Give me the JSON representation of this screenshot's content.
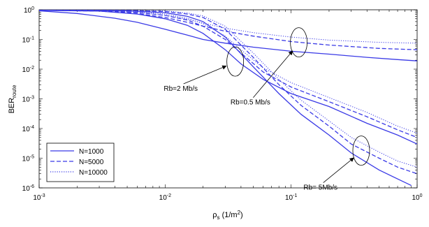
{
  "chart_data": {
    "type": "line",
    "title": "",
    "xlabel": {
      "base": "ρ",
      "sub": "s",
      "rest": " (1/m",
      "sup": "2",
      "close": ")"
    },
    "ylabel": {
      "base": "BER",
      "sub": "route"
    },
    "xscale": "log",
    "yscale": "log",
    "xlim": [
      0.001,
      1
    ],
    "ylim": [
      1e-06,
      1
    ],
    "grid": false,
    "legend_position": "bottom-left",
    "color": "#3a3ae6",
    "x_tick_labels": [
      {
        "value": 0.001,
        "base": "10",
        "exp": "-3"
      },
      {
        "value": 0.01,
        "base": "10",
        "exp": "-2"
      },
      {
        "value": 0.1,
        "base": "10",
        "exp": "-1"
      },
      {
        "value": 1,
        "base": "10",
        "exp": "0"
      }
    ],
    "y_tick_labels": [
      {
        "value": 1e-06,
        "base": "10",
        "exp": "-6"
      },
      {
        "value": 1e-05,
        "base": "10",
        "exp": "-5"
      },
      {
        "value": 0.0001,
        "base": "10",
        "exp": "-4"
      },
      {
        "value": 0.001,
        "base": "10",
        "exp": "-3"
      },
      {
        "value": 0.01,
        "base": "10",
        "exp": "-2"
      },
      {
        "value": 0.1,
        "base": "10",
        "exp": "-1"
      },
      {
        "value": 1,
        "base": "10",
        "exp": "0"
      }
    ],
    "legend": [
      {
        "label": "N=1000",
        "style": "solid"
      },
      {
        "label": "N=5000",
        "style": "dashed"
      },
      {
        "label": "N=10000",
        "style": "dotted"
      }
    ],
    "series": [
      {
        "name": "N=1000",
        "style": "solid",
        "group": "Rb=0.5 Mb/s",
        "points": [
          [
            0.001,
            0.92
          ],
          [
            0.002,
            0.75
          ],
          [
            0.004,
            0.52
          ],
          [
            0.006,
            0.38
          ],
          [
            0.01,
            0.22
          ],
          [
            0.015,
            0.14
          ],
          [
            0.02,
            0.1
          ],
          [
            0.03,
            0.075
          ],
          [
            0.05,
            0.055
          ],
          [
            0.1,
            0.04
          ],
          [
            0.2,
            0.032
          ],
          [
            0.4,
            0.025
          ],
          [
            0.7,
            0.021
          ],
          [
            1,
            0.019
          ]
        ]
      },
      {
        "name": "N=5000",
        "style": "dashed",
        "group": "Rb=0.5 Mb/s",
        "points": [
          [
            0.001,
            0.97
          ],
          [
            0.003,
            0.9
          ],
          [
            0.006,
            0.75
          ],
          [
            0.01,
            0.55
          ],
          [
            0.015,
            0.38
          ],
          [
            0.02,
            0.28
          ],
          [
            0.03,
            0.19
          ],
          [
            0.05,
            0.13
          ],
          [
            0.1,
            0.085
          ],
          [
            0.2,
            0.065
          ],
          [
            0.5,
            0.05
          ],
          [
            1,
            0.045
          ]
        ]
      },
      {
        "name": "N=10000",
        "style": "dotted",
        "group": "Rb=0.5 Mb/s",
        "points": [
          [
            0.001,
            0.98
          ],
          [
            0.003,
            0.93
          ],
          [
            0.006,
            0.82
          ],
          [
            0.01,
            0.65
          ],
          [
            0.015,
            0.48
          ],
          [
            0.02,
            0.36
          ],
          [
            0.03,
            0.24
          ],
          [
            0.05,
            0.17
          ],
          [
            0.1,
            0.12
          ],
          [
            0.2,
            0.095
          ],
          [
            0.5,
            0.08
          ],
          [
            1,
            0.075
          ]
        ]
      },
      {
        "name": "N=1000",
        "style": "solid",
        "group": "Rb=2 Mb/s",
        "points": [
          [
            0.001,
            0.95
          ],
          [
            0.003,
            0.9
          ],
          [
            0.006,
            0.72
          ],
          [
            0.01,
            0.5
          ],
          [
            0.015,
            0.3
          ],
          [
            0.02,
            0.16
          ],
          [
            0.03,
            0.045
          ],
          [
            0.04,
            0.015
          ],
          [
            0.06,
            0.0045
          ],
          [
            0.1,
            0.0015
          ],
          [
            0.2,
            0.00055
          ],
          [
            0.4,
            0.00015
          ],
          [
            0.7,
            6e-05
          ],
          [
            1,
            3e-05
          ]
        ]
      },
      {
        "name": "N=5000",
        "style": "dashed",
        "group": "Rb=2 Mb/s",
        "points": [
          [
            0.001,
            0.97
          ],
          [
            0.003,
            0.93
          ],
          [
            0.006,
            0.82
          ],
          [
            0.01,
            0.65
          ],
          [
            0.015,
            0.45
          ],
          [
            0.02,
            0.28
          ],
          [
            0.03,
            0.1
          ],
          [
            0.04,
            0.035
          ],
          [
            0.06,
            0.008
          ],
          [
            0.1,
            0.0025
          ],
          [
            0.2,
            0.0008
          ],
          [
            0.4,
            0.00025
          ],
          [
            0.7,
            9e-05
          ],
          [
            1,
            5e-05
          ]
        ]
      },
      {
        "name": "N=10000",
        "style": "dotted",
        "group": "Rb=2 Mb/s",
        "points": [
          [
            0.001,
            0.98
          ],
          [
            0.003,
            0.95
          ],
          [
            0.006,
            0.88
          ],
          [
            0.01,
            0.72
          ],
          [
            0.015,
            0.52
          ],
          [
            0.02,
            0.34
          ],
          [
            0.03,
            0.13
          ],
          [
            0.04,
            0.045
          ],
          [
            0.06,
            0.011
          ],
          [
            0.1,
            0.0035
          ],
          [
            0.2,
            0.0011
          ],
          [
            0.4,
            0.00035
          ],
          [
            0.7,
            0.00012
          ],
          [
            1,
            7e-05
          ]
        ]
      },
      {
        "name": "N=1000",
        "style": "solid",
        "group": "Rb= 5Mb/s",
        "points": [
          [
            0.001,
            0.96
          ],
          [
            0.005,
            0.92
          ],
          [
            0.01,
            0.8
          ],
          [
            0.015,
            0.6
          ],
          [
            0.02,
            0.4
          ],
          [
            0.03,
            0.12
          ],
          [
            0.05,
            0.012
          ],
          [
            0.08,
            0.0015
          ],
          [
            0.12,
            0.0003
          ],
          [
            0.2,
            6e-05
          ],
          [
            0.3,
            1.5e-05
          ],
          [
            0.5,
            4e-06
          ],
          [
            0.7,
            2e-06
          ],
          [
            0.9,
            1.2e-06
          ]
        ]
      },
      {
        "name": "N=5000",
        "style": "dashed",
        "group": "Rb= 5Mb/s",
        "points": [
          [
            0.001,
            0.98
          ],
          [
            0.005,
            0.95
          ],
          [
            0.01,
            0.88
          ],
          [
            0.015,
            0.72
          ],
          [
            0.02,
            0.55
          ],
          [
            0.03,
            0.22
          ],
          [
            0.05,
            0.025
          ],
          [
            0.08,
            0.003
          ],
          [
            0.12,
            0.0006
          ],
          [
            0.2,
            0.00012
          ],
          [
            0.3,
            3e-05
          ],
          [
            0.5,
            1e-05
          ],
          [
            0.7,
            5e-06
          ],
          [
            1,
            3e-06
          ]
        ]
      },
      {
        "name": "N=10000",
        "style": "dotted",
        "group": "Rb= 5Mb/s",
        "points": [
          [
            0.001,
            0.99
          ],
          [
            0.005,
            0.96
          ],
          [
            0.01,
            0.92
          ],
          [
            0.015,
            0.78
          ],
          [
            0.02,
            0.62
          ],
          [
            0.03,
            0.28
          ],
          [
            0.05,
            0.035
          ],
          [
            0.08,
            0.0045
          ],
          [
            0.12,
            0.0009
          ],
          [
            0.2,
            0.00018
          ],
          [
            0.3,
            5e-05
          ],
          [
            0.5,
            1.6e-05
          ],
          [
            0.7,
            8e-06
          ],
          [
            1,
            5e-06
          ]
        ]
      }
    ],
    "annotations": [
      {
        "text": "Rb=2 Mb/s",
        "ellipse_center": [
          0.036,
          0.018
        ],
        "arrow_from": [
          0.014,
          0.0032
        ]
      },
      {
        "text": "Rb=0.5 Mb/s",
        "ellipse_center": [
          0.115,
          0.08
        ],
        "arrow_from": [
          0.05,
          0.0011
        ]
      },
      {
        "text": "Rb= 5Mb/s",
        "ellipse_center": [
          0.36,
          1.8e-05
        ],
        "arrow_from": [
          0.18,
          1.5e-06
        ]
      }
    ]
  }
}
